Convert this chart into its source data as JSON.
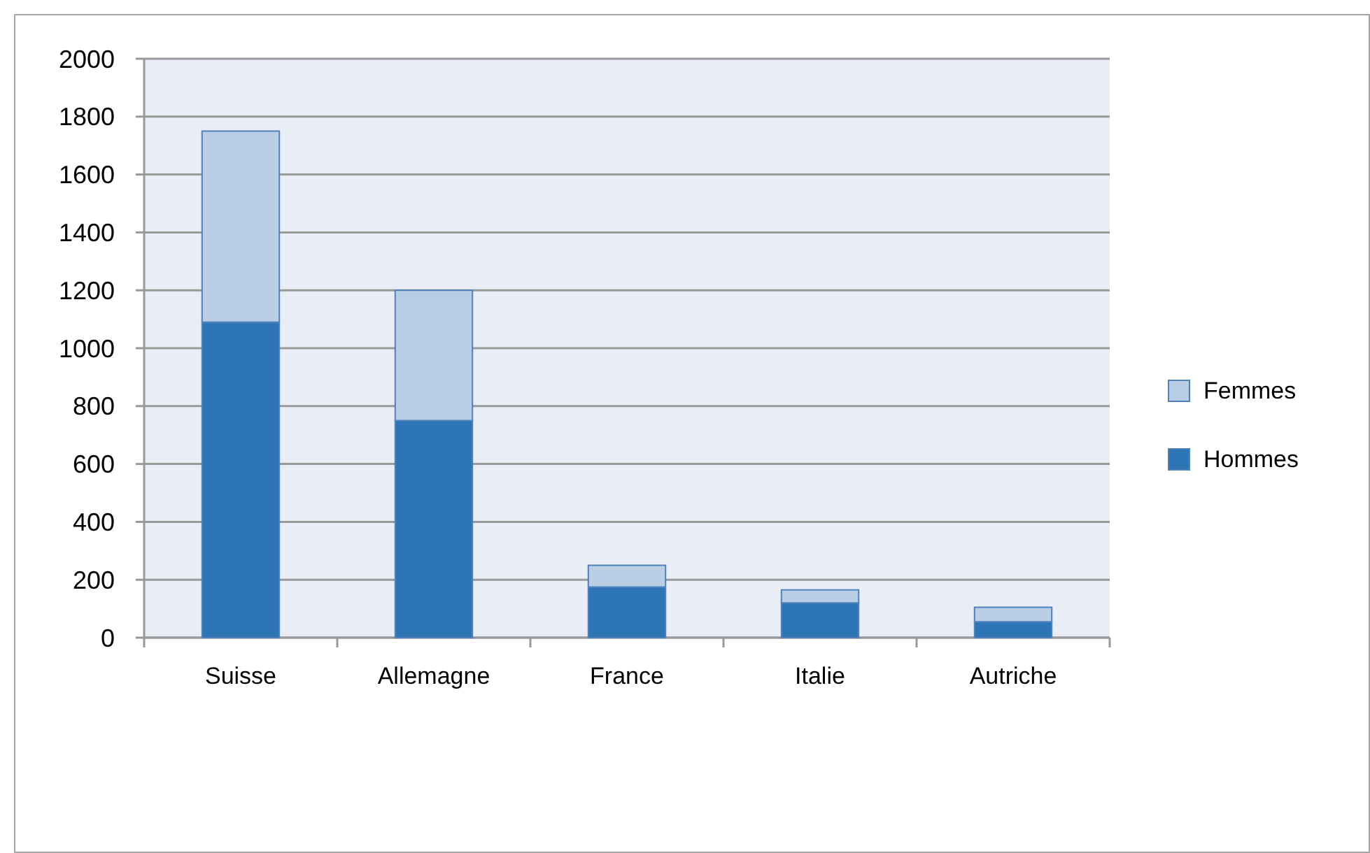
{
  "chart_data": {
    "type": "bar",
    "stacked": true,
    "categories": [
      "Suisse",
      "Allemagne",
      "France",
      "Italie",
      "Autriche"
    ],
    "series": [
      {
        "name": "Hommes",
        "color": "#2e75b6",
        "values": [
          1090,
          750,
          175,
          120,
          55
        ]
      },
      {
        "name": "Femmes",
        "color": "#b9cde5",
        "values": [
          660,
          450,
          75,
          45,
          50
        ]
      }
    ],
    "ylim": [
      0,
      2000
    ],
    "yticks": [
      0,
      200,
      400,
      600,
      800,
      1000,
      1200,
      1400,
      1600,
      1800,
      2000
    ],
    "grid": "y",
    "legend": "right"
  }
}
